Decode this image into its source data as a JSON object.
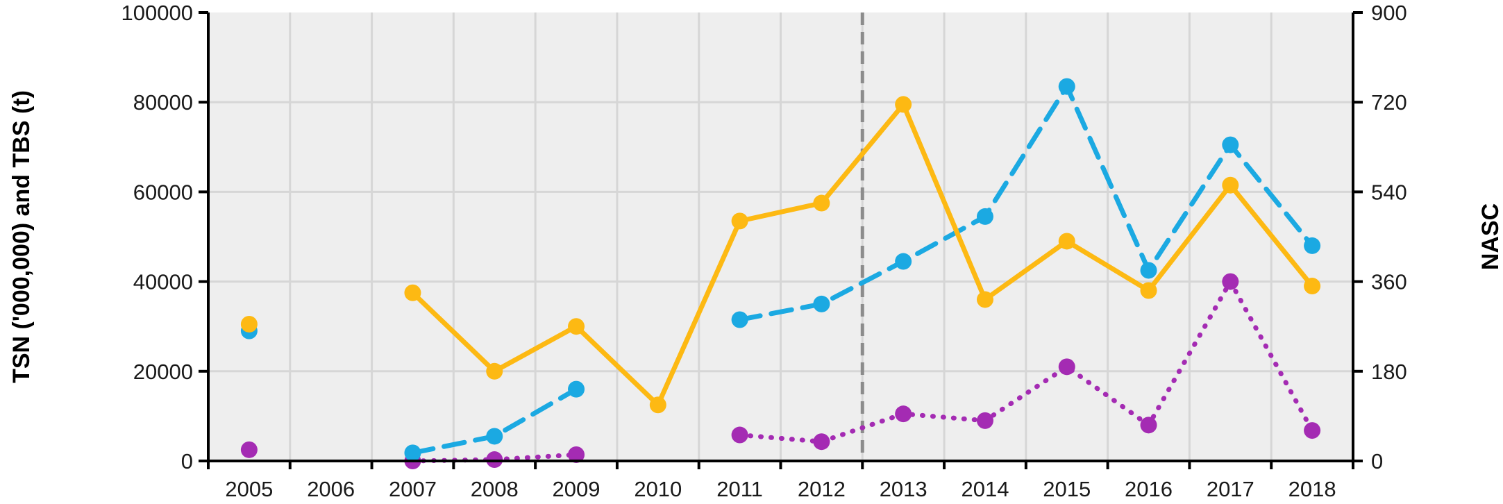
{
  "chart_data": {
    "type": "line",
    "title": "",
    "xlabel": "",
    "ylabel_left": "TSN ('000,000) and TBS (t)",
    "ylabel_right": "NASC",
    "categories": [
      "2005",
      "2006",
      "2007",
      "2008",
      "2009",
      "2010",
      "2011",
      "2012",
      "2013",
      "2014",
      "2015",
      "2016",
      "2017",
      "2018"
    ],
    "ylim_left": [
      0,
      100000
    ],
    "ylim_right": [
      0,
      900
    ],
    "yticks_left": [
      "0",
      "20000",
      "40000",
      "60000",
      "80000",
      "100000"
    ],
    "yticks_right": [
      "0",
      "180",
      "360",
      "540",
      "720",
      "900"
    ],
    "grid": true,
    "vline_between": [
      "2012",
      "2013"
    ],
    "series": [
      {
        "color": "#FDB913",
        "style": "solid",
        "axis": "left",
        "values": [
          30500,
          null,
          37500,
          20000,
          30000,
          12500,
          53500,
          57500,
          79500,
          36000,
          49000,
          38000,
          61500,
          39000
        ]
      },
      {
        "color": "#1BA9E2",
        "style": "dashed",
        "axis": "left",
        "values": [
          29000,
          null,
          1800,
          5500,
          16000,
          null,
          31500,
          35000,
          44500,
          54500,
          83500,
          42500,
          70500,
          48000
        ]
      },
      {
        "color": "#A42BB3",
        "style": "dotted",
        "axis": "left",
        "values": [
          2500,
          null,
          0,
          300,
          1400,
          null,
          5800,
          4300,
          10500,
          9000,
          21000,
          8000,
          40000,
          6800
        ]
      }
    ]
  }
}
